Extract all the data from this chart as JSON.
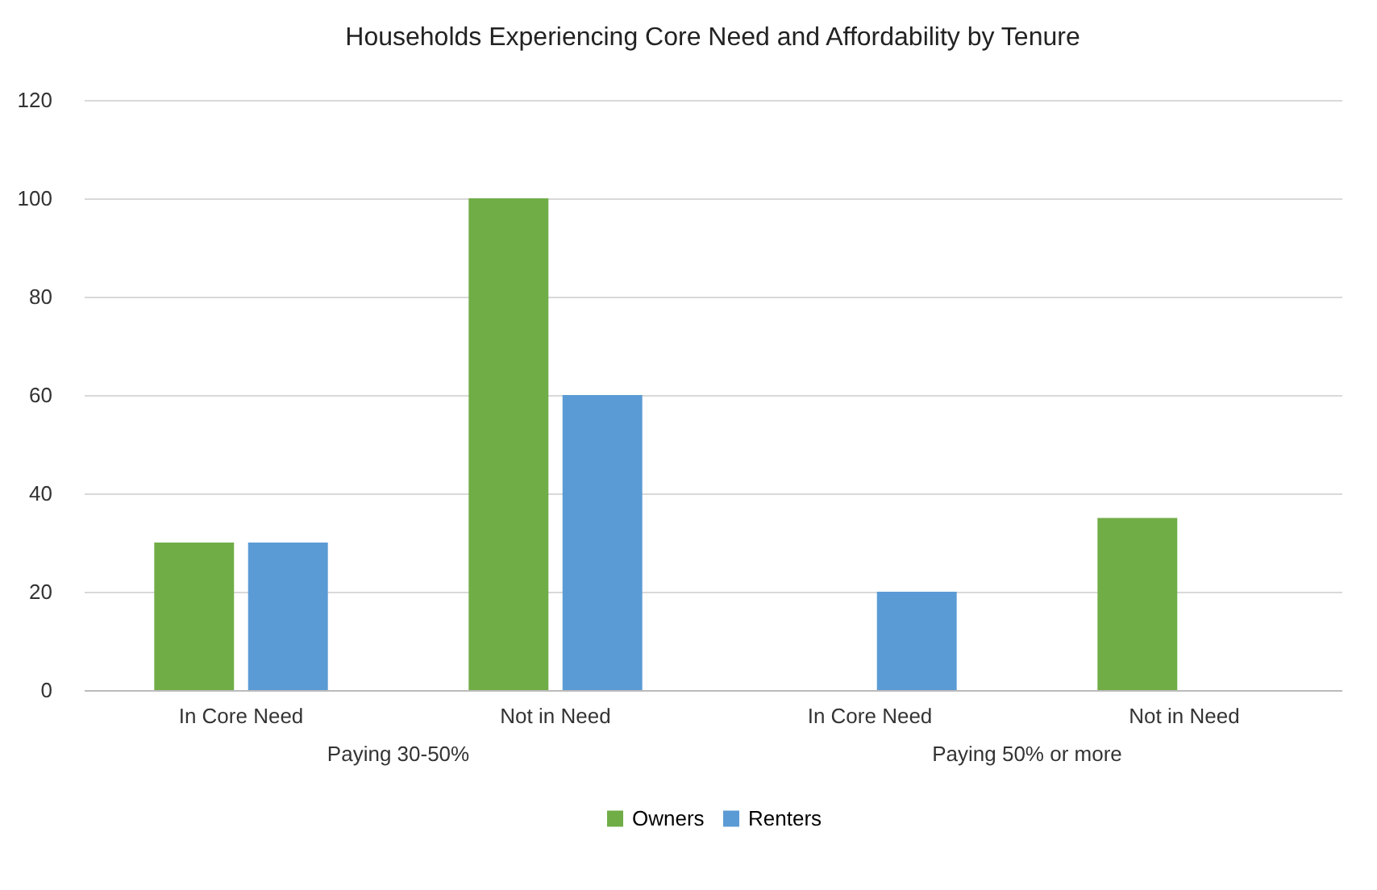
{
  "chart_data": {
    "type": "bar",
    "title": "Households Experiencing Core Need and Affordability by Tenure",
    "categories": [
      "In Core Need",
      "Not in Need",
      "In Core Need",
      "Not in Need"
    ],
    "series": [
      {
        "name": "Owners",
        "color": "#70ad47",
        "values": [
          30,
          100,
          null,
          35
        ]
      },
      {
        "name": "Renters",
        "color": "#5b9bd5",
        "values": [
          30,
          60,
          20,
          null
        ]
      }
    ],
    "annotations": [
      "Paying 30-50%",
      "Paying 50% or more"
    ],
    "ylim": [
      0,
      120
    ],
    "yticks": [
      0,
      20,
      40,
      60,
      80,
      100,
      120
    ],
    "grid": "y",
    "legend": "bottom"
  }
}
